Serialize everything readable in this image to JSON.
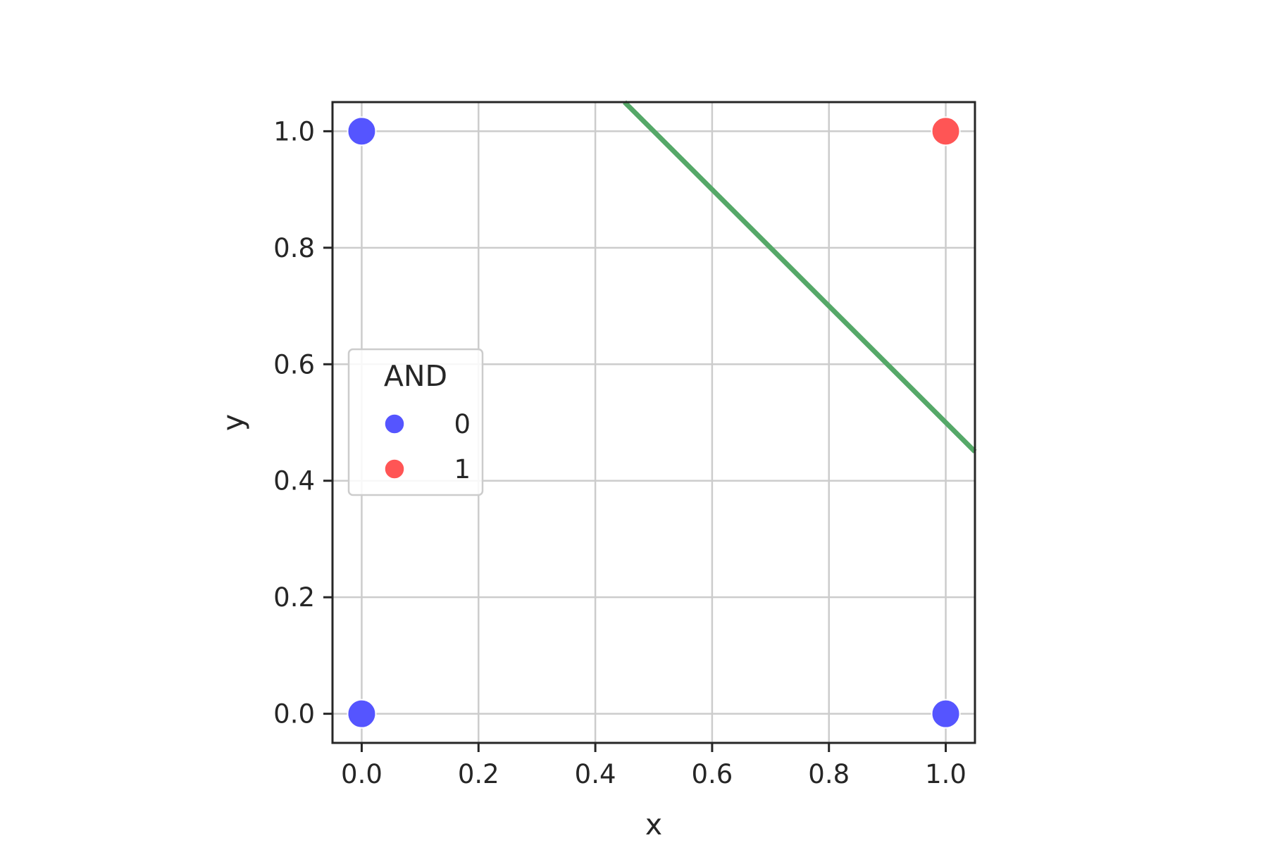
{
  "chart_data": {
    "type": "scatter",
    "xlabel": "x",
    "ylabel": "y",
    "xlim": [
      -0.05,
      1.05
    ],
    "ylim": [
      -0.05,
      1.05
    ],
    "xticks": [
      "0.0",
      "0.2",
      "0.4",
      "0.6",
      "0.8",
      "1.0"
    ],
    "yticks": [
      "0.0",
      "0.2",
      "0.4",
      "0.6",
      "0.8",
      "1.0"
    ],
    "grid": true,
    "legend": {
      "title": "AND",
      "placement": "center-left",
      "entries": [
        {
          "label": "0",
          "color": "#5555ff"
        },
        {
          "label": "1",
          "color": "#ff5555"
        }
      ]
    },
    "points": [
      {
        "x": 0,
        "y": 1,
        "class": "0"
      },
      {
        "x": 0,
        "y": 0,
        "class": "0"
      },
      {
        "x": 1,
        "y": 0,
        "class": "0"
      },
      {
        "x": 1,
        "y": 1,
        "class": "1"
      }
    ],
    "line": {
      "x": [
        0.45,
        1.05
      ],
      "y": [
        1.05,
        0.45
      ],
      "color": "#55a868"
    }
  }
}
